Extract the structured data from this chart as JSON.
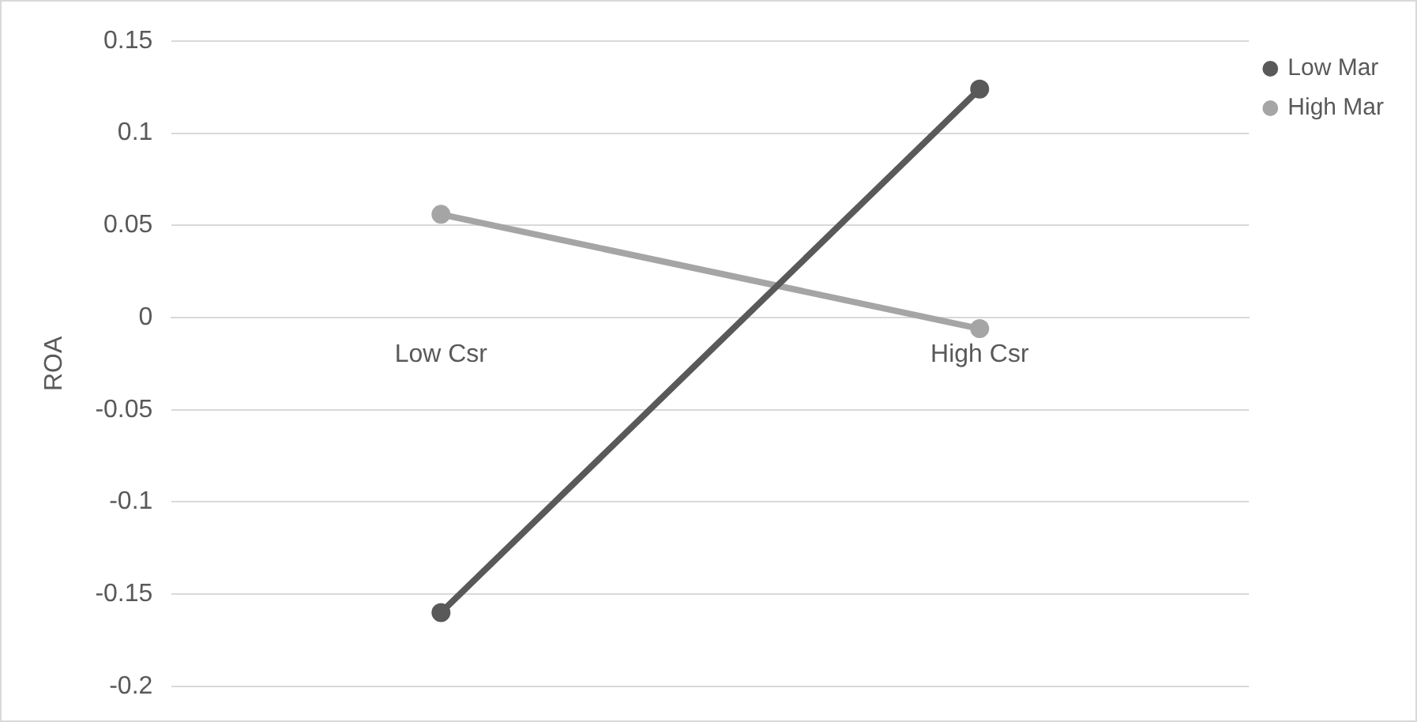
{
  "chart_data": {
    "type": "line",
    "categories": [
      "Low Csr",
      "High Csr"
    ],
    "series": [
      {
        "name": "Low Mar",
        "color": "#595959",
        "values": [
          -0.16,
          0.124
        ]
      },
      {
        "name": "High Mar",
        "color": "#a5a5a5",
        "values": [
          0.056,
          -0.006
        ]
      }
    ],
    "ylabel": "ROA",
    "ylim": [
      -0.2,
      0.15
    ],
    "yticks": [
      -0.2,
      -0.15,
      -0.1,
      -0.05,
      0,
      0.05,
      0.1,
      0.15
    ],
    "grid": "y",
    "legend": "right",
    "marker": "circle",
    "line_style": "solid"
  }
}
